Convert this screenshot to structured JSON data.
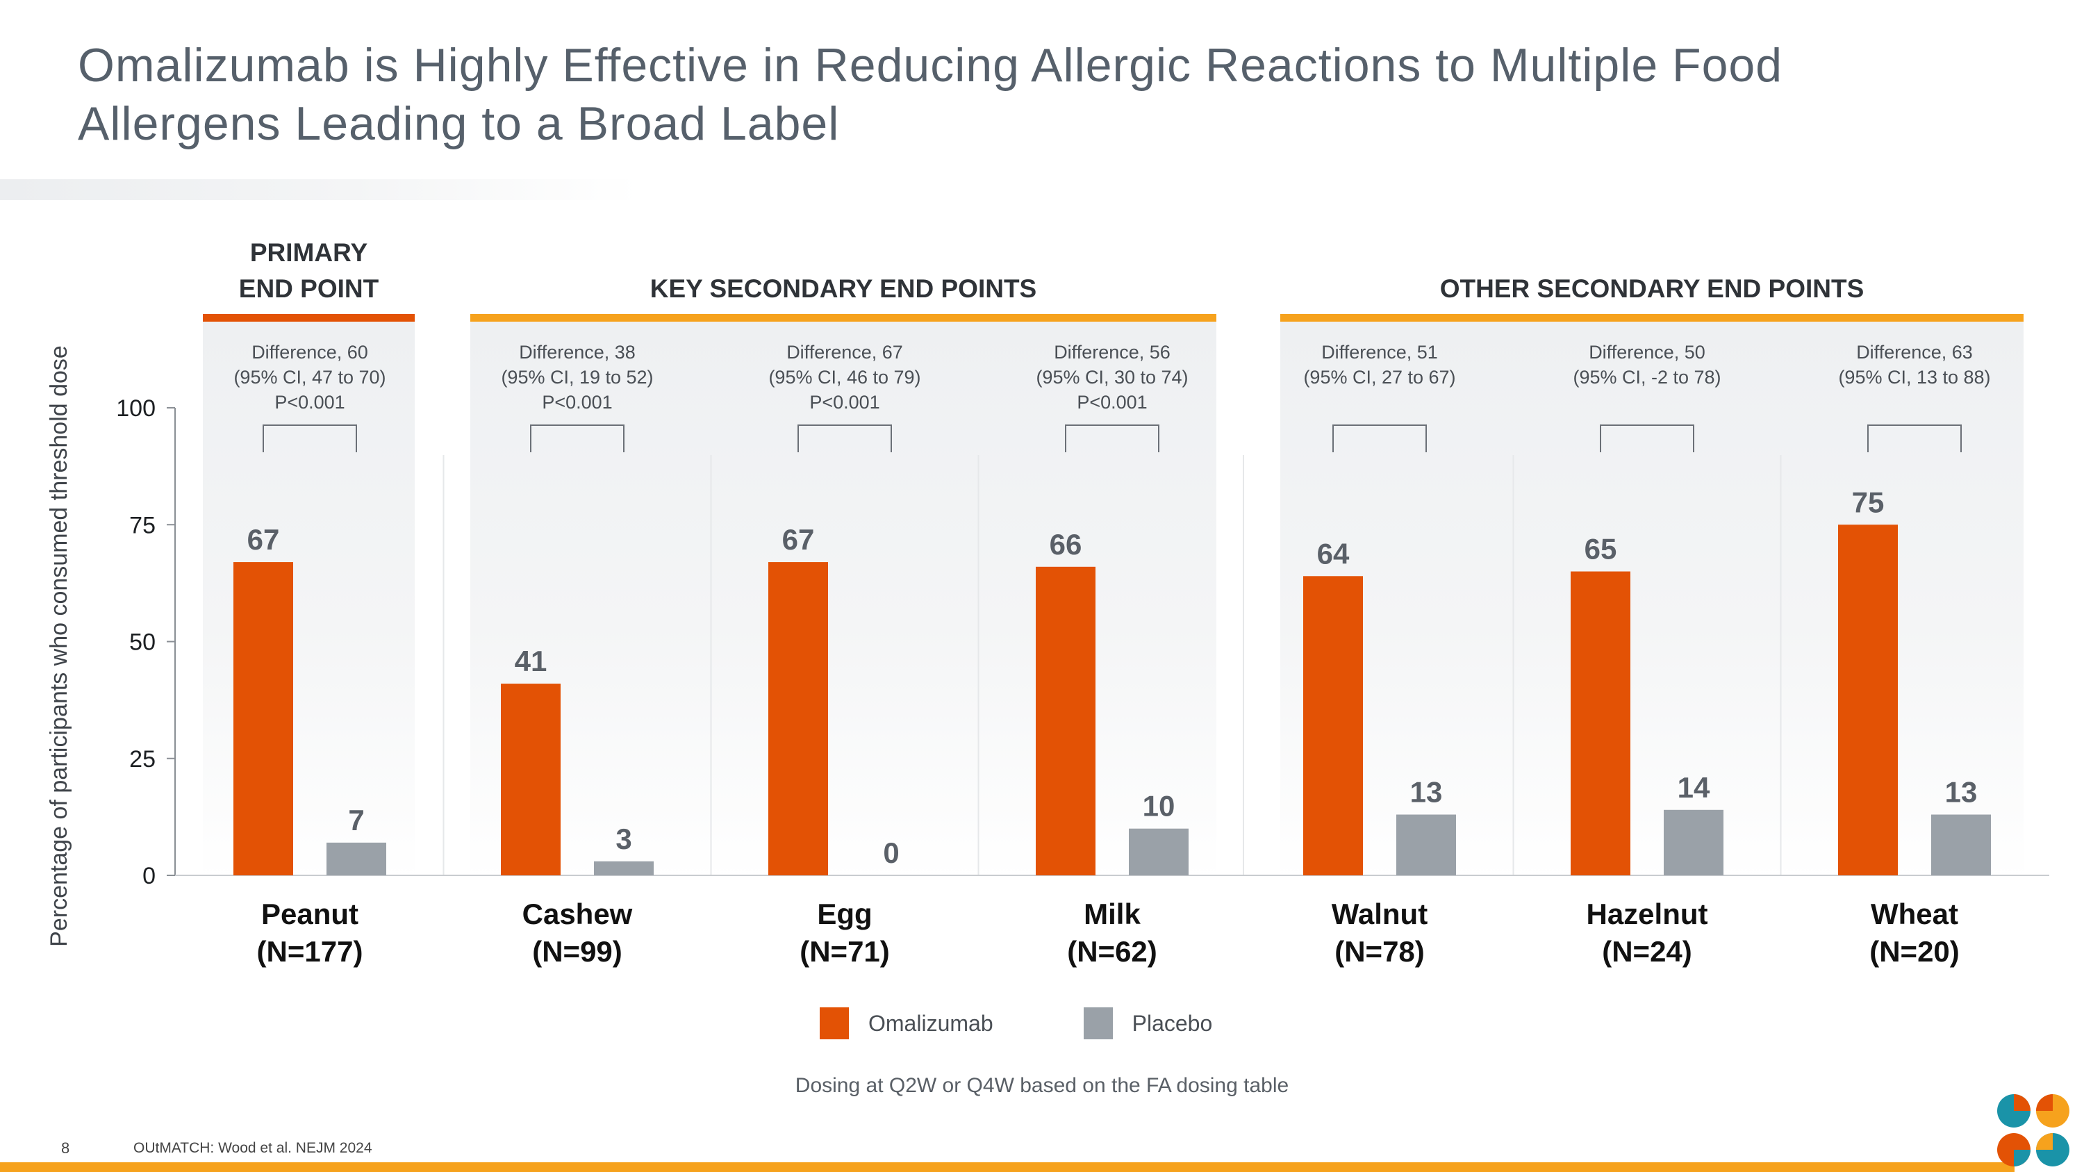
{
  "title": "Omalizumab is Highly Effective in Reducing Allergic Reactions to Multiple Food Allergens Leading to a Broad Label",
  "colors": {
    "omalizumab": "#e35205",
    "placebo": "#9aa1a8",
    "primary_line": "#e35205",
    "secondary_line": "#f6a21d",
    "footer_bar": "#f6a21d"
  },
  "groups": [
    {
      "label": "PRIMARY\nEND POINT",
      "line_color": "#e35205"
    },
    {
      "label": "KEY SECONDARY END POINTS",
      "line_color": "#f6a21d"
    },
    {
      "label": "OTHER SECONDARY END POINTS",
      "line_color": "#f6a21d"
    }
  ],
  "chart_data": {
    "type": "bar",
    "categories": [
      "Peanut",
      "Cashew",
      "Egg",
      "Milk",
      "Walnut",
      "Hazelnut",
      "Wheat"
    ],
    "category_n": [
      "(N=177)",
      "(N=99)",
      "(N=71)",
      "(N=62)",
      "(N=78)",
      "(N=24)",
      "(N=20)"
    ],
    "category_group": [
      0,
      1,
      1,
      1,
      2,
      2,
      2
    ],
    "series": [
      {
        "name": "Omalizumab",
        "values": [
          67,
          41,
          67,
          66,
          64,
          65,
          75
        ]
      },
      {
        "name": "Placebo",
        "values": [
          7,
          3,
          0,
          10,
          13,
          14,
          13
        ]
      }
    ],
    "annotations": [
      {
        "difference": "Difference, 60",
        "ci": "(95% CI, 47 to 70)",
        "p": "P<0.001"
      },
      {
        "difference": "Difference, 38",
        "ci": "(95% CI, 19 to 52)",
        "p": "P<0.001"
      },
      {
        "difference": "Difference, 67",
        "ci": "(95% CI, 46 to 79)",
        "p": "P<0.001"
      },
      {
        "difference": "Difference, 56",
        "ci": "(95% CI, 30 to 74)",
        "p": "P<0.001"
      },
      {
        "difference": "Difference, 51",
        "ci": "(95% CI, 27 to 67)",
        "p": ""
      },
      {
        "difference": "Difference, 50",
        "ci": "(95% CI, -2 to 78)",
        "p": ""
      },
      {
        "difference": "Difference, 63",
        "ci": "(95% CI, 13 to 88)",
        "p": ""
      }
    ],
    "ylabel": "Percentage of participants who consumed threshold dose",
    "ylim": [
      0,
      100
    ],
    "yticks": [
      0,
      25,
      50,
      75,
      100
    ],
    "legend_position": "bottom-center"
  },
  "legend": {
    "omalizumab": "Omalizumab",
    "placebo": "Placebo"
  },
  "footnote": "Dosing at Q2W or Q4W based on the FA dosing table",
  "page_number": "8",
  "source": "OUtMATCH: Wood et al. NEJM 2024",
  "logo_icon": "company-logo-icon"
}
